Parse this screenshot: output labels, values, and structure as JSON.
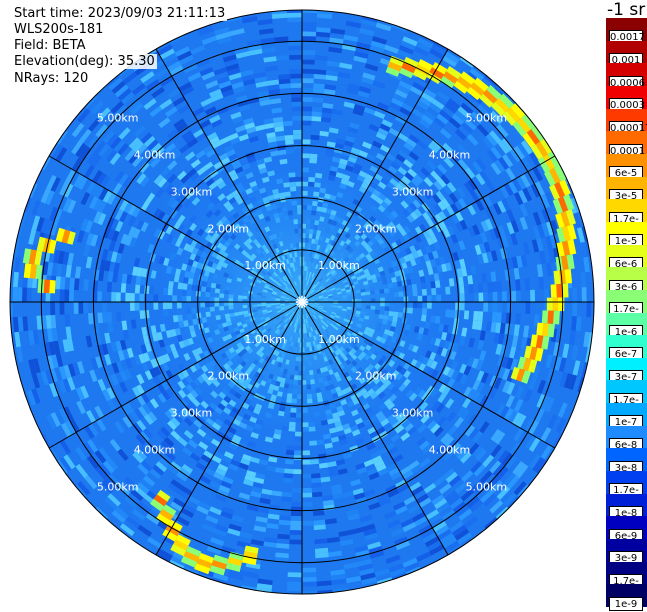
{
  "info": {
    "start_time": "Start time: 2023/09/03 21:11:13",
    "instrument": "WLS200s-181",
    "field": "Field: BETA",
    "elevation": "Elevation(deg): 35.30",
    "nrays": "NRays: 120"
  },
  "colorbar": {
    "unit": "-1 sr",
    "levels": [
      {
        "label": "0.0017",
        "color": "#8b0000"
      },
      {
        "label": "0.001",
        "color": "#b00000"
      },
      {
        "label": "0.0006",
        "color": "#d40000"
      },
      {
        "label": "0.0003",
        "color": "#f00000"
      },
      {
        "label": "0.00017",
        "color": "#ff3a00"
      },
      {
        "label": "0.0001",
        "color": "#ff6a00"
      },
      {
        "label": "6e-5",
        "color": "#ff9000"
      },
      {
        "label": "3e-5",
        "color": "#ffb400"
      },
      {
        "label": "1.7e-5",
        "color": "#ffd800"
      },
      {
        "label": "1e-5",
        "color": "#ffff00"
      },
      {
        "label": "6e-6",
        "color": "#e6ff1a"
      },
      {
        "label": "3e-6",
        "color": "#b8ff48"
      },
      {
        "label": "1.7e-6",
        "color": "#8aff76"
      },
      {
        "label": "1e-6",
        "color": "#5cffa4"
      },
      {
        "label": "6e-7",
        "color": "#30ffd0"
      },
      {
        "label": "3e-7",
        "color": "#00f0ff"
      },
      {
        "label": "1.7e-7",
        "color": "#00c8ff"
      },
      {
        "label": "1e-7",
        "color": "#00a8ff"
      },
      {
        "label": "6e-8",
        "color": "#1e8cff"
      },
      {
        "label": "3e-8",
        "color": "#0064ff"
      },
      {
        "label": "1.7e-8",
        "color": "#0040f0"
      },
      {
        "label": "1e-8",
        "color": "#0020d8"
      },
      {
        "label": "6e-9",
        "color": "#0000c0"
      },
      {
        "label": "3e-9",
        "color": "#0000a0"
      },
      {
        "label": "1.7e-9",
        "color": "#000082"
      },
      {
        "label": "1e-9",
        "color": "#000064"
      }
    ]
  },
  "chart_data": {
    "type": "heatmap",
    "projection": "polar (PPI scan)",
    "field": "BETA",
    "elevation_deg": 35.3,
    "n_rays": 120,
    "ring_ranges_km": [
      1,
      2,
      3,
      4,
      5
    ],
    "ring_labels": [
      "1.00km",
      "2.00km",
      "3.00km",
      "4.00km",
      "5.00km"
    ],
    "max_range_km": 5.6,
    "spoke_azimuths_deg": [
      0,
      30,
      60,
      90,
      120,
      150,
      180,
      210,
      240,
      270,
      300,
      330
    ],
    "background_beta": "1e-8 to 1.7e-7 (mostly 3e-8 to 1e-7)",
    "high_backscatter_features": [
      {
        "description": "NE to E arc near ring 3-5 km",
        "az_from_deg": 20,
        "az_to_deg": 110,
        "range_km": [
          4.2,
          5.4
        ],
        "beta_peak": "3e-5"
      },
      {
        "description": "W band",
        "az_from_deg": 272,
        "az_to_deg": 285,
        "range_km": [
          4.5,
          5.2
        ],
        "beta_peak": "1.7e-5"
      },
      {
        "description": "SSW arc",
        "az_from_deg": 190,
        "az_to_deg": 215,
        "range_km": [
          4.5,
          5.3
        ],
        "beta_peak": "3e-5"
      }
    ]
  }
}
